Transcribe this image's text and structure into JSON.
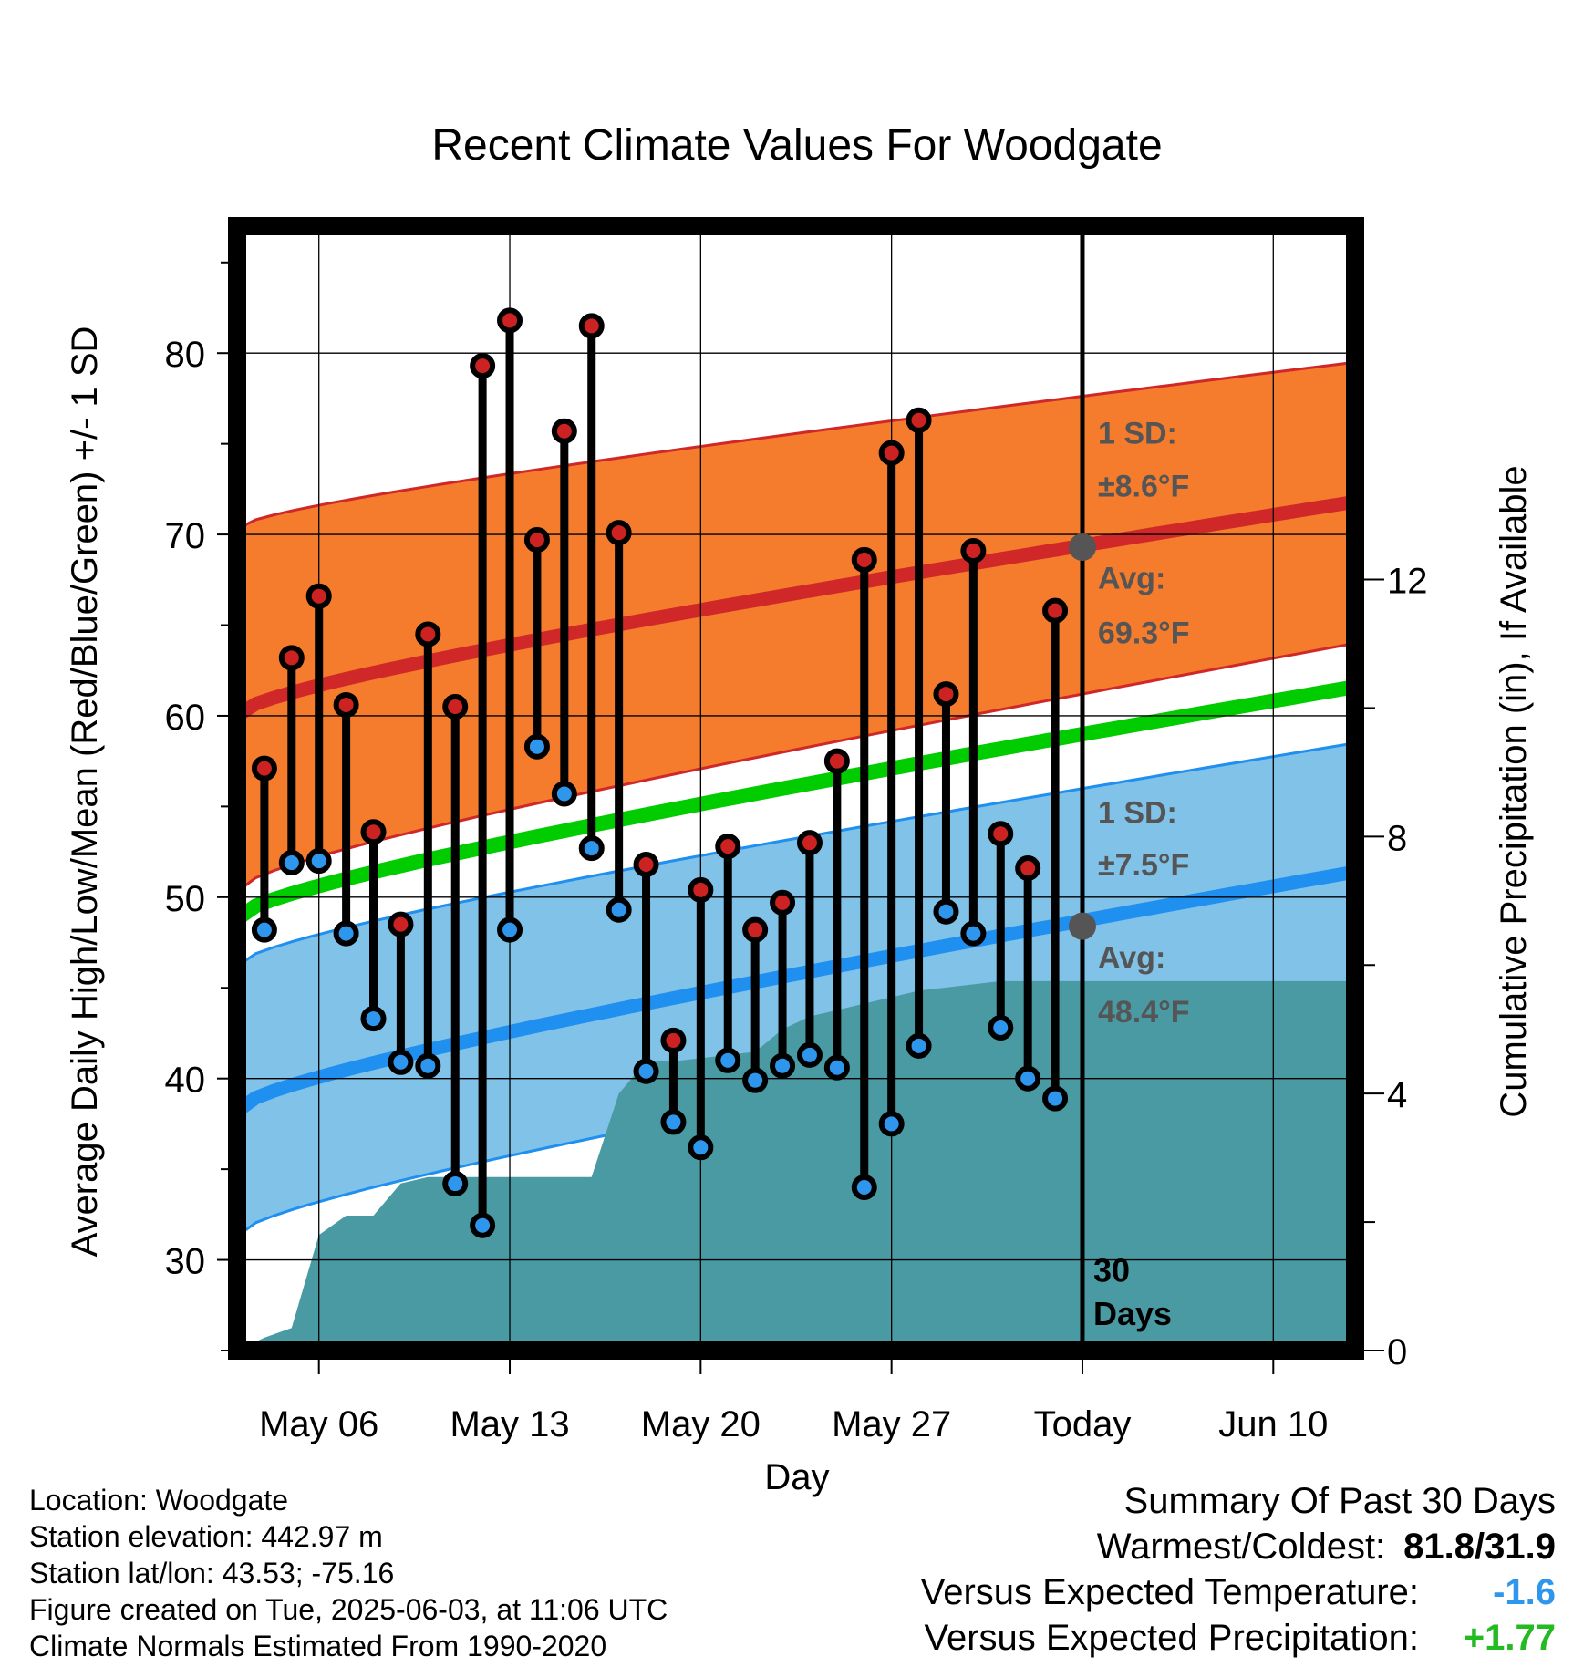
{
  "chart_data": {
    "type": "line",
    "title": "Recent Climate Values For Woodgate",
    "xlabel": "Day",
    "ylabel": "Average Daily High/Low/Mean (Red/Blue/Green) +/- 1 SD",
    "y2label": "Cumulative Precipitation (in), If Available",
    "xlim": [
      "May 03",
      "Jun 13"
    ],
    "ylim": [
      25,
      87
    ],
    "y2lim": [
      0,
      17.5
    ],
    "x_tick_labels": [
      "May 06",
      "May 13",
      "May 20",
      "May 27",
      "Today",
      "Jun 10"
    ],
    "y_tick_labels": [
      "30",
      "40",
      "50",
      "60",
      "70",
      "80"
    ],
    "y2_tick_labels": [
      "0",
      "4",
      "8",
      "12"
    ],
    "grid": true,
    "today_marker": {
      "date": "Jun 03",
      "label_line1": "30",
      "label_line2": "Days"
    },
    "normals": {
      "x": [
        "May 03",
        "Jun 13"
      ],
      "high_avg": [
        60.0,
        71.8
      ],
      "high_plus_sd": [
        70.3,
        79.5
      ],
      "high_minus_sd": [
        50.3,
        64.0
      ],
      "low_avg": [
        38.2,
        51.4
      ],
      "low_plus_sd": [
        46.2,
        58.5
      ],
      "low_minus_sd": [
        31.3,
        44.7
      ],
      "mean": [
        48.8,
        61.6
      ]
    },
    "today_high": {
      "avg": 69.3,
      "sd_label": "1 SD:",
      "sd_value": "±8.6",
      "avg_label": "Avg:",
      "avg_value": "69.3",
      "unit": "°F"
    },
    "today_low": {
      "avg": 48.4,
      "sd_label": "1 SD:",
      "sd_value": "±7.5",
      "avg_label": "Avg:",
      "avg_value": "48.4",
      "unit": "°F"
    },
    "series": [
      {
        "name": "High",
        "color": "#cc2222",
        "x": [
          "May 04",
          "May 05",
          "May 06",
          "May 07",
          "May 08",
          "May 09",
          "May 10",
          "May 11",
          "May 12",
          "May 13",
          "May 14",
          "May 15",
          "May 16",
          "May 17",
          "May 18",
          "May 19",
          "May 20",
          "May 21",
          "May 22",
          "May 23",
          "May 24",
          "May 25",
          "May 26",
          "May 27",
          "May 28",
          "May 29",
          "May 30",
          "May 31",
          "Jun 01",
          "Jun 02"
        ],
        "values": [
          57.1,
          63.2,
          66.6,
          60.6,
          53.6,
          48.5,
          64.5,
          60.5,
          79.3,
          81.8,
          69.7,
          75.7,
          81.5,
          70.1,
          51.8,
          42.1,
          50.4,
          52.8,
          48.2,
          49.7,
          53.0,
          57.5,
          68.6,
          74.5,
          76.3,
          61.2,
          69.1,
          53.5,
          51.6,
          65.8
        ]
      },
      {
        "name": "Low",
        "color": "#2f96ee",
        "x": [
          "May 04",
          "May 05",
          "May 06",
          "May 07",
          "May 08",
          "May 09",
          "May 10",
          "May 11",
          "May 12",
          "May 13",
          "May 14",
          "May 15",
          "May 16",
          "May 17",
          "May 18",
          "May 19",
          "May 20",
          "May 21",
          "May 22",
          "May 23",
          "May 24",
          "May 25",
          "May 26",
          "May 27",
          "May 28",
          "May 29",
          "May 30",
          "May 31",
          "Jun 01",
          "Jun 02"
        ],
        "values": [
          48.2,
          51.9,
          52.0,
          48.0,
          43.3,
          40.9,
          40.7,
          34.2,
          31.9,
          48.2,
          58.3,
          55.7,
          52.7,
          49.3,
          40.4,
          37.6,
          36.2,
          41.0,
          39.9,
          40.7,
          41.3,
          40.6,
          34.0,
          37.5,
          41.8,
          49.2,
          48.0,
          42.8,
          40.0,
          38.9
        ]
      },
      {
        "name": "Cumulative Precipitation",
        "color": "#4a9aa4",
        "x": [
          "May 03",
          "May 04",
          "May 05",
          "May 06",
          "May 07",
          "May 08",
          "May 09",
          "May 10",
          "May 11",
          "May 12",
          "May 13",
          "May 14",
          "May 15",
          "May 16",
          "May 17",
          "May 18",
          "May 19",
          "May 20",
          "May 21",
          "May 22",
          "May 23",
          "May 24",
          "May 25",
          "May 26",
          "May 27",
          "May 28",
          "May 29",
          "May 30",
          "May 31",
          "Jun 01",
          "Jun 02",
          "Jun 03",
          "Jun 13"
        ],
        "values": [
          0.0,
          0.2,
          0.35,
          1.8,
          2.1,
          2.1,
          2.6,
          2.7,
          2.7,
          2.7,
          2.7,
          2.7,
          2.7,
          2.7,
          4.0,
          4.5,
          4.5,
          4.55,
          4.6,
          4.65,
          5.0,
          5.2,
          5.3,
          5.4,
          5.5,
          5.6,
          5.65,
          5.7,
          5.75,
          5.75,
          5.75,
          5.75,
          5.75
        ]
      }
    ]
  },
  "footer": {
    "location": "Location: Woodgate",
    "elevation": "Station elevation: 442.97 m",
    "latlon": "Station lat/lon: 43.53; -75.16",
    "created": "Figure created on Tue, 2025-06-03, at 11:06 UTC",
    "normals": "Climate Normals Estimated From 1990-2020"
  },
  "summary": {
    "title": "Summary Of Past 30 Days",
    "warm_cold_label": "Warmest/Coldest:",
    "warm_cold_value": "81.8/31.9",
    "temp_label": "Versus Expected Temperature:",
    "temp_value": "-1.6",
    "temp_color": "#2f96ee",
    "precip_label": "Versus Expected Precipitation:",
    "precip_value": "+1.77",
    "precip_color": "#22bb22"
  },
  "colors": {
    "high_band": "#f47c2c",
    "low_band": "#80c2e8",
    "high_avg": "#d02828",
    "low_avg": "#1f8ff0",
    "mean": "#00cc00",
    "precip": "#4a9aa4"
  }
}
